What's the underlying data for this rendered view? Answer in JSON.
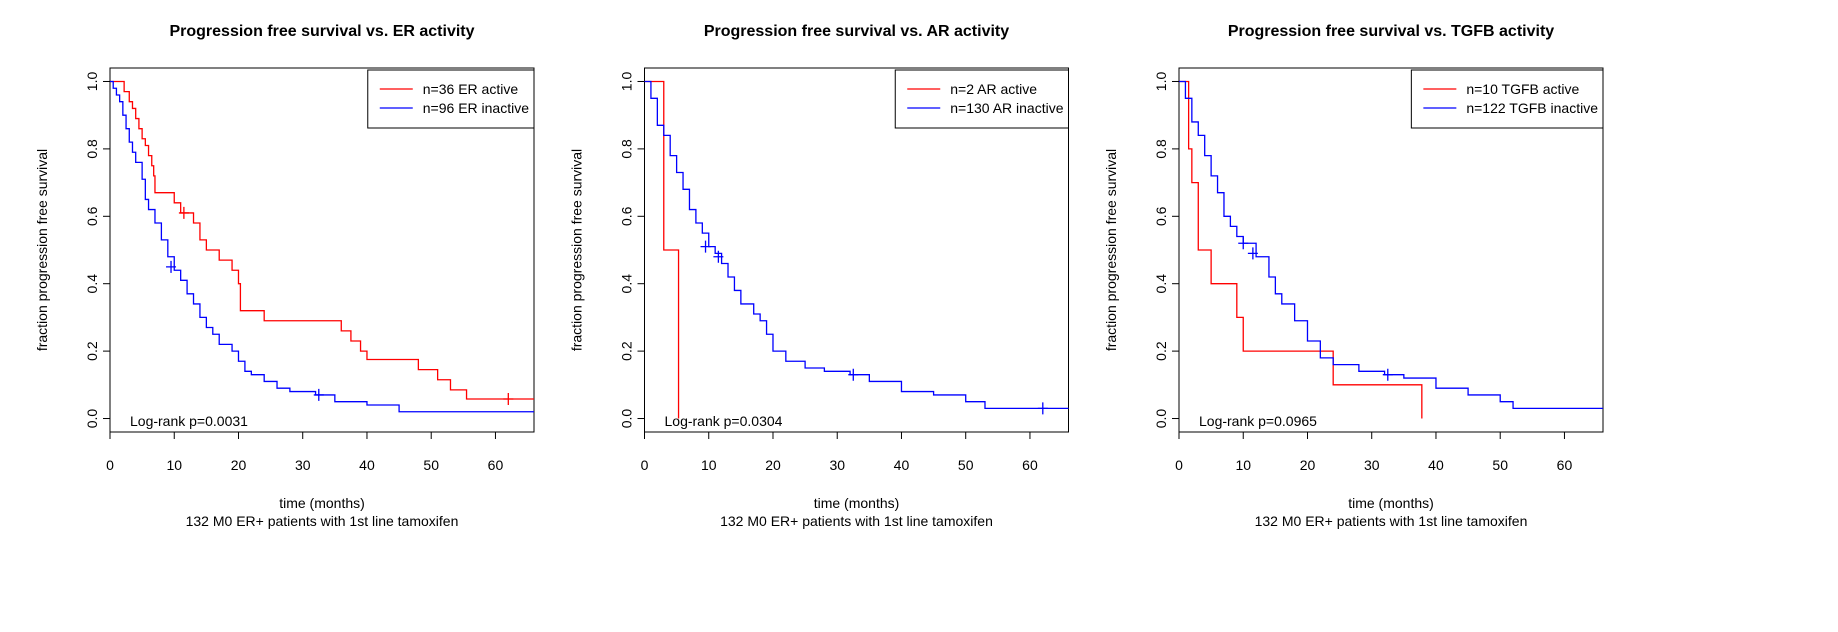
{
  "chart_data": [
    {
      "type": "line",
      "step": true,
      "title": "Progression free survival vs. ER activity",
      "xlabel": "time (months)",
      "subtitle": "132 M0 ER+ patients with 1st line tamoxifen",
      "ylabel": "fraction progression free survival",
      "annotation": "Log-rank p=0.0031",
      "legend": "topright",
      "xlim": [
        0,
        66
      ],
      "ylim": [
        -0.04,
        1.04
      ],
      "xticks": [
        0,
        10,
        20,
        30,
        40,
        50,
        60
      ],
      "yticks": [
        {
          "value": 0,
          "label": "0.0"
        },
        0.2,
        0.4,
        0.6,
        0.8,
        {
          "value": 1,
          "label": "1.0"
        }
      ],
      "series": [
        {
          "name": "n=36 ER active",
          "color": "#ff0000",
          "x": [
            0,
            2.2,
            3,
            3.5,
            4,
            4.5,
            5,
            5.5,
            6,
            6.5,
            6.8,
            7,
            10,
            11,
            13,
            14,
            15,
            17,
            19,
            20,
            20.3,
            24,
            36,
            37.5,
            39,
            40,
            48,
            51,
            53,
            55.5,
            66
          ],
          "values": [
            1,
            0.97,
            0.94,
            0.92,
            0.89,
            0.86,
            0.83,
            0.81,
            0.78,
            0.75,
            0.72,
            0.67,
            0.64,
            0.61,
            0.58,
            0.53,
            0.5,
            0.47,
            0.44,
            0.4,
            0.32,
            0.29,
            0.26,
            0.23,
            0.2,
            0.175,
            0.145,
            0.115,
            0.085,
            0.058,
            0.058
          ],
          "censor_x": [
            11.5,
            62
          ],
          "censor_values": [
            0.61,
            0.058
          ]
        },
        {
          "name": "n=96 ER inactive",
          "color": "#0000ff",
          "x": [
            0,
            0.5,
            1,
            1.5,
            2,
            2.5,
            3,
            3.5,
            4,
            5,
            5.5,
            6,
            7,
            8,
            9,
            10,
            11,
            12,
            13,
            14,
            15,
            16,
            17,
            19,
            20,
            21,
            22,
            24,
            26,
            28,
            32,
            35,
            40,
            45,
            66
          ],
          "values": [
            1,
            0.98,
            0.96,
            0.94,
            0.9,
            0.86,
            0.82,
            0.79,
            0.76,
            0.71,
            0.65,
            0.62,
            0.58,
            0.53,
            0.48,
            0.44,
            0.41,
            0.37,
            0.34,
            0.3,
            0.27,
            0.25,
            0.22,
            0.2,
            0.17,
            0.14,
            0.13,
            0.11,
            0.09,
            0.08,
            0.07,
            0.05,
            0.04,
            0.02,
            0.02
          ],
          "censor_x": [
            9.5,
            32.5
          ],
          "censor_values": [
            0.45,
            0.07
          ]
        }
      ]
    },
    {
      "type": "line",
      "step": true,
      "title": "Progression free survival vs. AR activity",
      "xlabel": "time (months)",
      "subtitle": "132 M0 ER+ patients with 1st line tamoxifen",
      "ylabel": "fraction progression free survival",
      "annotation": "Log-rank p=0.0304",
      "legend": "topright",
      "xlim": [
        0,
        66
      ],
      "ylim": [
        -0.04,
        1.04
      ],
      "xticks": [
        0,
        10,
        20,
        30,
        40,
        50,
        60
      ],
      "yticks": [
        {
          "value": 0,
          "label": "0.0"
        },
        0.2,
        0.4,
        0.6,
        0.8,
        {
          "value": 1,
          "label": "1.0"
        }
      ],
      "series": [
        {
          "name": "n=2 AR active",
          "color": "#ff0000",
          "x": [
            0,
            3,
            5.3
          ],
          "values": [
            1,
            0.5,
            0
          ],
          "censor_x": [],
          "censor_values": []
        },
        {
          "name": "n=130 AR inactive",
          "color": "#0000ff",
          "x": [
            0,
            1,
            2,
            3,
            4,
            5,
            6,
            7,
            8,
            9,
            10,
            11,
            12,
            13,
            14,
            15,
            17,
            18,
            19,
            20,
            22,
            25,
            28,
            32,
            35,
            40,
            45,
            50,
            53,
            66
          ],
          "values": [
            1,
            0.95,
            0.87,
            0.84,
            0.78,
            0.73,
            0.68,
            0.62,
            0.58,
            0.55,
            0.51,
            0.49,
            0.46,
            0.42,
            0.38,
            0.34,
            0.31,
            0.29,
            0.25,
            0.2,
            0.17,
            0.15,
            0.14,
            0.13,
            0.11,
            0.08,
            0.07,
            0.05,
            0.03,
            0.03
          ],
          "censor_x": [
            9.5,
            11.5,
            32.5,
            62
          ],
          "censor_values": [
            0.51,
            0.48,
            0.13,
            0.03
          ]
        }
      ]
    },
    {
      "type": "line",
      "step": true,
      "title": "Progression free survival vs. TGFB activity",
      "xlabel": "time (months)",
      "subtitle": "132 M0 ER+ patients with 1st line tamoxifen",
      "ylabel": "fraction progression free survival",
      "annotation": "Log-rank p=0.0965",
      "legend": "topright",
      "xlim": [
        0,
        66
      ],
      "ylim": [
        -0.04,
        1.04
      ],
      "xticks": [
        0,
        10,
        20,
        30,
        40,
        50,
        60
      ],
      "yticks": [
        {
          "value": 0,
          "label": "0.0"
        },
        0.2,
        0.4,
        0.6,
        0.8,
        {
          "value": 1,
          "label": "1.0"
        }
      ],
      "series": [
        {
          "name": "n=10 TGFB active",
          "color": "#ff0000",
          "x": [
            0,
            1.5,
            2,
            3,
            5,
            9,
            10,
            24,
            37.8
          ],
          "values": [
            1,
            0.8,
            0.7,
            0.5,
            0.4,
            0.3,
            0.2,
            0.1,
            0
          ],
          "censor_x": [],
          "censor_values": []
        },
        {
          "name": "n=122 TGFB inactive",
          "color": "#0000ff",
          "x": [
            0,
            1,
            2,
            3,
            4,
            5,
            6,
            7,
            8,
            9,
            10,
            12,
            14,
            15,
            16,
            18,
            20,
            22,
            24,
            28,
            32,
            35,
            40,
            45,
            50,
            52,
            66
          ],
          "values": [
            1,
            0.95,
            0.88,
            0.84,
            0.78,
            0.72,
            0.67,
            0.6,
            0.57,
            0.54,
            0.52,
            0.48,
            0.42,
            0.37,
            0.34,
            0.29,
            0.23,
            0.18,
            0.16,
            0.14,
            0.13,
            0.12,
            0.09,
            0.07,
            0.05,
            0.03,
            0.03
          ],
          "censor_x": [
            10,
            11.5,
            32.5
          ],
          "censor_values": [
            0.52,
            0.49,
            0.13
          ]
        }
      ]
    }
  ]
}
